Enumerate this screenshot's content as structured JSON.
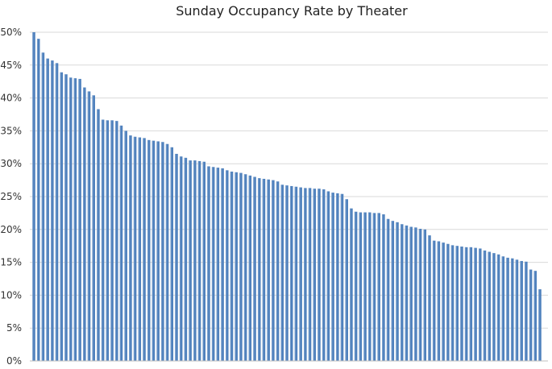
{
  "chart_data": {
    "type": "bar",
    "title": "Sunday Occupancy Rate by Theater",
    "xlabel": "",
    "ylabel": "",
    "ylim": [
      0,
      50
    ],
    "y_ticks": [
      "0%",
      "5%",
      "10%",
      "15%",
      "20%",
      "25%",
      "30%",
      "35%",
      "40%",
      "45%",
      "50%"
    ],
    "grid": "horizontal",
    "legend": "none",
    "bar_color": "#4f81bd",
    "bar_highlight": "#95b3d7",
    "values": [
      50.0,
      49.0,
      46.9,
      46.0,
      45.7,
      45.3,
      43.9,
      43.6,
      43.1,
      43.0,
      42.9,
      41.6,
      41.0,
      40.4,
      38.3,
      36.7,
      36.6,
      36.6,
      36.5,
      35.8,
      35.0,
      34.3,
      34.1,
      34.0,
      33.9,
      33.6,
      33.5,
      33.4,
      33.3,
      33.0,
      32.5,
      31.5,
      31.1,
      30.9,
      30.5,
      30.5,
      30.4,
      30.3,
      29.6,
      29.5,
      29.4,
      29.3,
      29.0,
      28.8,
      28.7,
      28.6,
      28.4,
      28.2,
      28.0,
      27.8,
      27.7,
      27.6,
      27.5,
      27.3,
      26.8,
      26.7,
      26.6,
      26.5,
      26.4,
      26.3,
      26.3,
      26.2,
      26.2,
      26.1,
      25.8,
      25.6,
      25.5,
      25.4,
      24.6,
      23.2,
      22.7,
      22.6,
      22.6,
      22.6,
      22.5,
      22.5,
      22.3,
      21.6,
      21.3,
      21.1,
      20.8,
      20.6,
      20.4,
      20.3,
      20.1,
      20.0,
      19.1,
      18.3,
      18.2,
      18.0,
      17.8,
      17.6,
      17.5,
      17.4,
      17.3,
      17.3,
      17.2,
      17.1,
      16.8,
      16.6,
      16.4,
      16.2,
      15.9,
      15.7,
      15.6,
      15.4,
      15.2,
      15.1,
      13.9,
      13.7,
      10.9
    ]
  }
}
